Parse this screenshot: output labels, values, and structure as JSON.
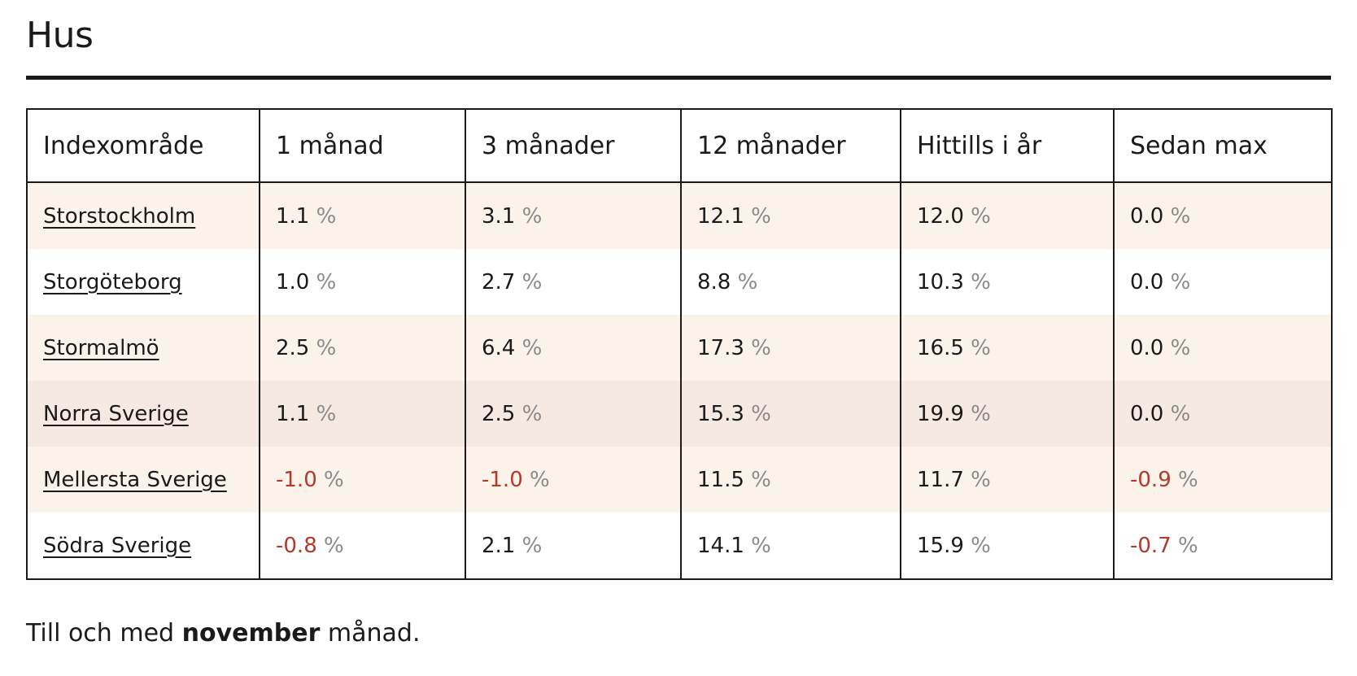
{
  "title": "Hus",
  "table": {
    "headers": [
      "Indexområde",
      "1 månad",
      "3 månader",
      "12 månader",
      "Hittills i år",
      "Sedan max"
    ],
    "percent_sign": "%",
    "rows": [
      {
        "area": "Storstockholm",
        "values": [
          "1.1",
          "3.1",
          "12.1",
          "12.0",
          "0.0"
        ],
        "negative": [
          false,
          false,
          false,
          false,
          false
        ]
      },
      {
        "area": "Storgöteborg",
        "values": [
          "1.0",
          "2.7",
          "8.8",
          "10.3",
          "0.0"
        ],
        "negative": [
          false,
          false,
          false,
          false,
          false
        ]
      },
      {
        "area": "Stormalmö",
        "values": [
          "2.5",
          "6.4",
          "17.3",
          "16.5",
          "0.0"
        ],
        "negative": [
          false,
          false,
          false,
          false,
          false
        ]
      },
      {
        "area": "Norra Sverige",
        "values": [
          "1.1",
          "2.5",
          "15.3",
          "19.9",
          "0.0"
        ],
        "negative": [
          false,
          false,
          false,
          false,
          false
        ]
      },
      {
        "area": "Mellersta Sverige",
        "values": [
          "-1.0",
          "-1.0",
          "11.5",
          "11.7",
          "-0.9"
        ],
        "negative": [
          true,
          true,
          false,
          false,
          true
        ]
      },
      {
        "area": "Södra Sverige",
        "values": [
          "-0.8",
          "2.1",
          "14.1",
          "15.9",
          "-0.7"
        ],
        "negative": [
          true,
          false,
          false,
          false,
          true
        ]
      }
    ]
  },
  "colors": {
    "negative": "#b13a2b",
    "percent": "#8a8a8a",
    "row_cream": "#fbf3e9",
    "row_rose": "#f5e9e1"
  },
  "footnote": {
    "prefix": "Till och med",
    "month": "november",
    "suffix": "månad."
  }
}
